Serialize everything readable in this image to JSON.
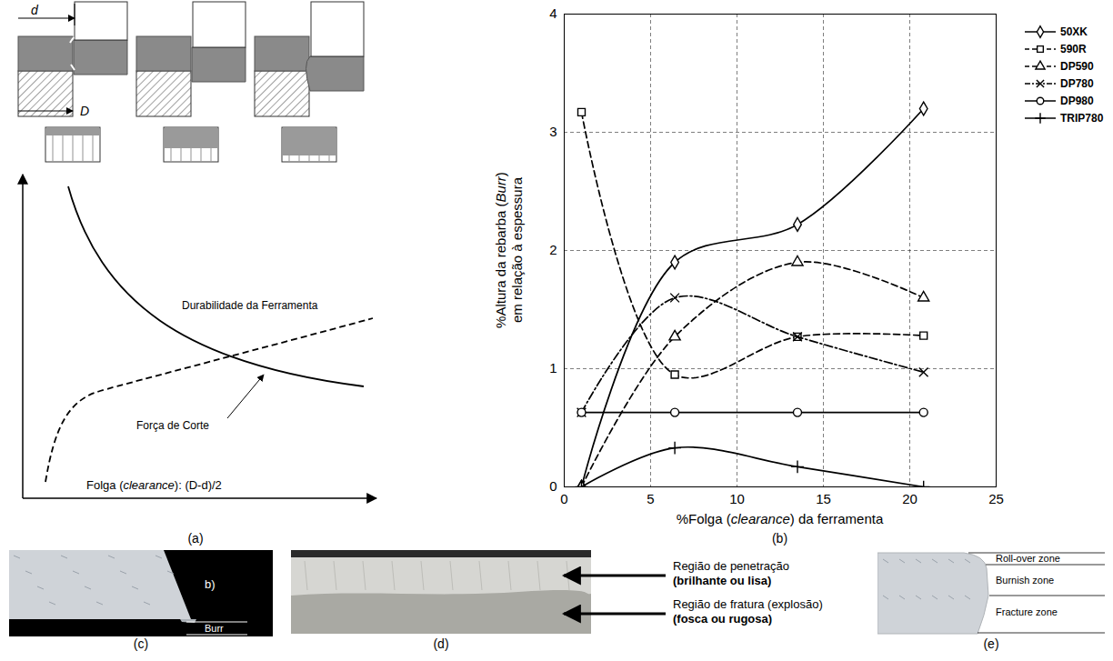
{
  "chart_data": {
    "type": "line",
    "x_label": "%Folga (clearance) da ferramenta",
    "y_label": "%Altura da rebarba (Burr) em relação à espessura",
    "x": [
      1,
      6.4,
      13.5,
      20.8
    ],
    "xlim": [
      0,
      25
    ],
    "xticks": [
      0,
      5,
      10,
      15,
      20,
      25
    ],
    "ylim": [
      0,
      4
    ],
    "yticks": [
      0,
      1,
      2,
      3,
      4
    ],
    "grid": true,
    "legend": "right",
    "series": [
      {
        "name": "50XK",
        "color": "#000000",
        "marker": "diamond",
        "line_style": "solid",
        "values": [
          0,
          1.9,
          2.22,
          3.2
        ]
      },
      {
        "name": "590R",
        "color": "#000000",
        "marker": "square",
        "line_style": "dashed",
        "values": [
          3.17,
          0.95,
          1.27,
          1.28
        ]
      },
      {
        "name": "DP590",
        "color": "#000000",
        "marker": "triangle",
        "line_style": "dashed",
        "values": [
          0,
          1.27,
          1.9,
          1.6
        ]
      },
      {
        "name": "DP780",
        "color": "#000000",
        "marker": "times",
        "line_style": "dashdot",
        "values": [
          0.63,
          1.6,
          1.27,
          0.97
        ]
      },
      {
        "name": "DP980",
        "color": "#000000",
        "marker": "circle",
        "line_style": "solid",
        "values": [
          0.63,
          0.63,
          0.63,
          0.63
        ]
      },
      {
        "name": "TRIP780",
        "color": "#000000",
        "marker": "plus",
        "line_style": "solid",
        "values": [
          0,
          0.33,
          0.17,
          0
        ]
      }
    ]
  },
  "panels": {
    "a": {
      "caption": "(a)",
      "labels": {
        "d": "d",
        "D": "D"
      },
      "curves": [
        {
          "name": "Durabilidade da Ferramenta",
          "line_style": "dashed"
        },
        {
          "name": "Força de Corte",
          "line_style": "solid"
        }
      ],
      "x_label": "Folga (clearance): (D-d)/2"
    },
    "b": {
      "caption": "(b)"
    },
    "c": {
      "caption": "(c)",
      "labels": [
        "b)",
        "Burr"
      ]
    },
    "d": {
      "caption": "(d)",
      "labels": [
        {
          "text": "Região de penetração",
          "detail": "(brilhante ou lisa)"
        },
        {
          "text": "Região de fratura (explosão)",
          "detail": "(fosca ou rugosa)"
        }
      ]
    },
    "e": {
      "caption": "(e)",
      "labels": [
        "Roll-over zone",
        "Burnish zone",
        "Fracture zone"
      ]
    }
  }
}
